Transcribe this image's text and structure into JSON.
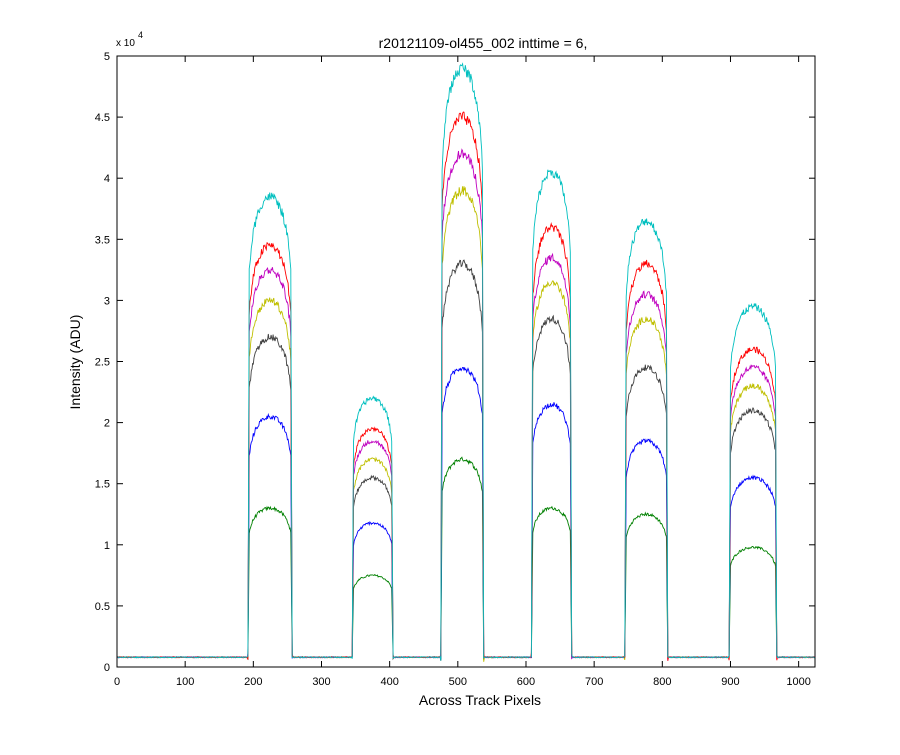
{
  "chart_data": {
    "type": "line",
    "title": "r20121109-ol455_002 inttime = 6,",
    "xlabel": "Across Track Pixels",
    "ylabel": "Intensity (ADU)",
    "y_exponent_label": "x 10",
    "y_exponent_power": "4",
    "xlim": [
      0,
      1024
    ],
    "ylim": [
      0,
      50000
    ],
    "xticks": [
      0,
      100,
      200,
      300,
      400,
      500,
      600,
      700,
      800,
      900,
      1000
    ],
    "yticks": [
      0,
      5000,
      10000,
      15000,
      20000,
      25000,
      30000,
      35000,
      40000,
      45000,
      50000
    ],
    "ytick_labels": [
      "0",
      "0.5",
      "1",
      "1.5",
      "2",
      "2.5",
      "3",
      "3.5",
      "4",
      "4.5",
      "5"
    ],
    "grid": false,
    "legend": "none",
    "baseline": 800,
    "peaks": [
      {
        "start": 192,
        "end": 257,
        "center": 232
      },
      {
        "start": 345,
        "end": 405,
        "center": 380
      },
      {
        "start": 475,
        "end": 538,
        "center": 512
      },
      {
        "start": 608,
        "end": 667,
        "center": 645
      },
      {
        "start": 745,
        "end": 808,
        "center": 780
      },
      {
        "start": 898,
        "end": 968,
        "center": 930
      }
    ],
    "series": [
      {
        "color": "#00BFBF",
        "peak_values": [
          38500,
          22000,
          49000,
          40500,
          36500,
          29500
        ]
      },
      {
        "color": "#FF0000",
        "peak_values": [
          34500,
          19500,
          45000,
          36000,
          33000,
          26000
        ]
      },
      {
        "color": "#BF00BF",
        "peak_values": [
          32500,
          18500,
          42000,
          33500,
          30500,
          24500
        ]
      },
      {
        "color": "#BFBF00",
        "peak_values": [
          30000,
          17000,
          39000,
          31500,
          28500,
          23000
        ]
      },
      {
        "color": "#404040",
        "peak_values": [
          27000,
          15500,
          33000,
          28500,
          24500,
          21000
        ]
      },
      {
        "color": "#0000FF",
        "peak_values": [
          20500,
          11800,
          24500,
          21500,
          18500,
          15500
        ]
      },
      {
        "color": "#008000",
        "peak_values": [
          13000,
          7500,
          17000,
          13000,
          12500,
          9800
        ]
      }
    ]
  }
}
